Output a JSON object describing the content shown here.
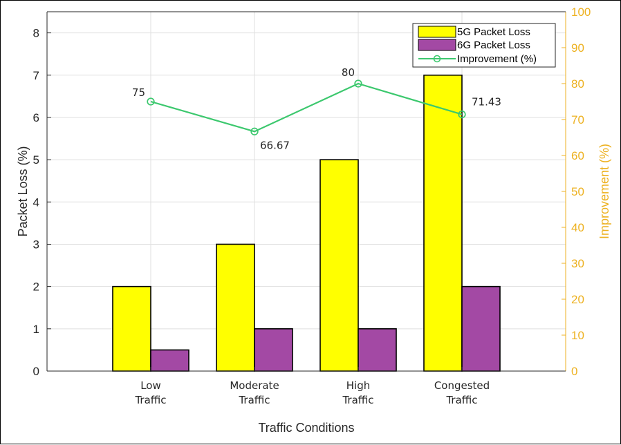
{
  "chart_data": {
    "type": "bar",
    "categories": [
      [
        "Low",
        "Traffic"
      ],
      [
        "Moderate",
        "Traffic"
      ],
      [
        "High",
        "Traffic"
      ],
      [
        "Congested",
        "Traffic"
      ]
    ],
    "series": [
      {
        "name": "5G Packet Loss",
        "type": "bar",
        "axis": "left",
        "color": "#FFFF00",
        "values": [
          2,
          3,
          5,
          7
        ]
      },
      {
        "name": "6G Packet Loss",
        "type": "bar",
        "axis": "left",
        "color": "#A349A4",
        "values": [
          0.5,
          1,
          1,
          2
        ]
      },
      {
        "name": "Improvement (%)",
        "type": "line",
        "axis": "right",
        "color": "#3CC86E",
        "values": [
          75,
          66.67,
          80,
          71.43
        ]
      }
    ],
    "data_labels": [
      "75",
      "66.67",
      "80",
      "71.43"
    ],
    "xlabel": "Traffic Conditions",
    "ylabel": "Packet Loss (%)",
    "y2label": "Improvement (%)",
    "ylim": [
      0,
      8.5
    ],
    "y2lim": [
      0,
      100
    ],
    "yticks": [
      0,
      1,
      2,
      3,
      4,
      5,
      6,
      7,
      8
    ],
    "y2ticks": [
      0,
      10,
      20,
      30,
      40,
      50,
      60,
      70,
      80,
      90,
      100
    ],
    "grid": true,
    "legend_position": "top-right",
    "colors": {
      "left_axis": "#262626",
      "right_axis": "#EDB120",
      "grid": "#DFDFDF"
    }
  }
}
